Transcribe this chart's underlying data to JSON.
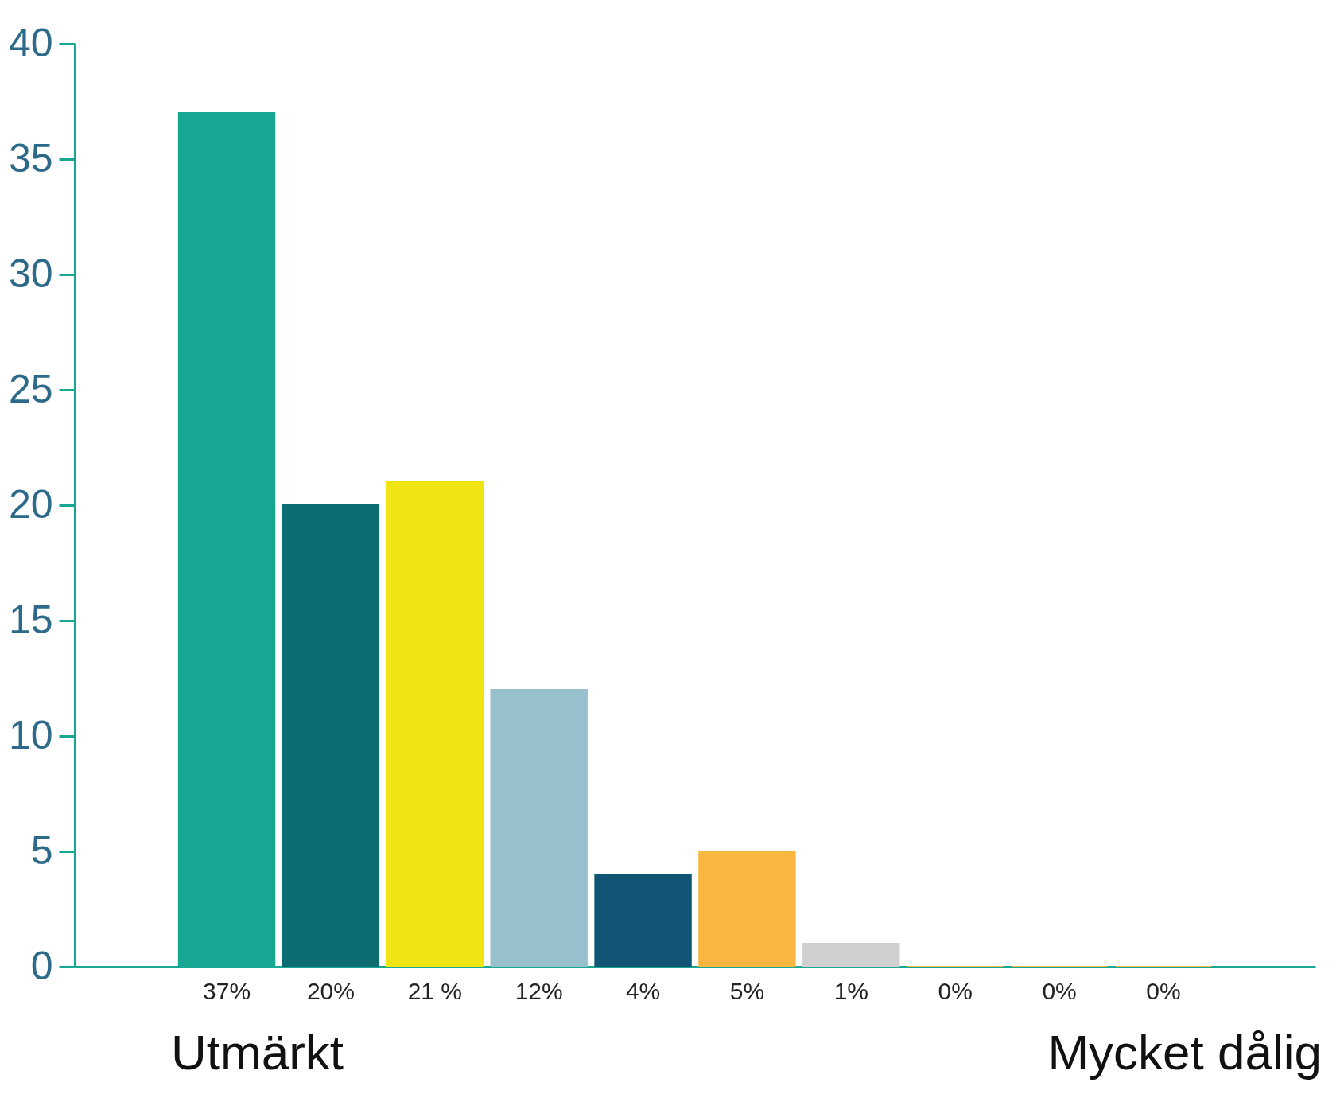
{
  "chart_data": {
    "type": "bar",
    "categories": [
      "37%",
      "20%",
      "21 %",
      "12%",
      "4%",
      "5%",
      "1%",
      "0%",
      "0%",
      "0%"
    ],
    "values": [
      37,
      20,
      21,
      12,
      4,
      5,
      1,
      0,
      0,
      0
    ],
    "colors": [
      "#17a893",
      "#0b6c72",
      "#f0e513",
      "#98c0cc",
      "#115574",
      "#f9b640",
      "#d0d0d0",
      "#f9b640",
      "#f9b640",
      "#f9b640"
    ],
    "ylim": [
      0,
      40
    ],
    "yticks": [
      0,
      5,
      10,
      15,
      20,
      25,
      30,
      35,
      40
    ],
    "grid": false,
    "legend": false,
    "annotations": [
      "Utmärkt",
      "Mycket dålig"
    ]
  }
}
